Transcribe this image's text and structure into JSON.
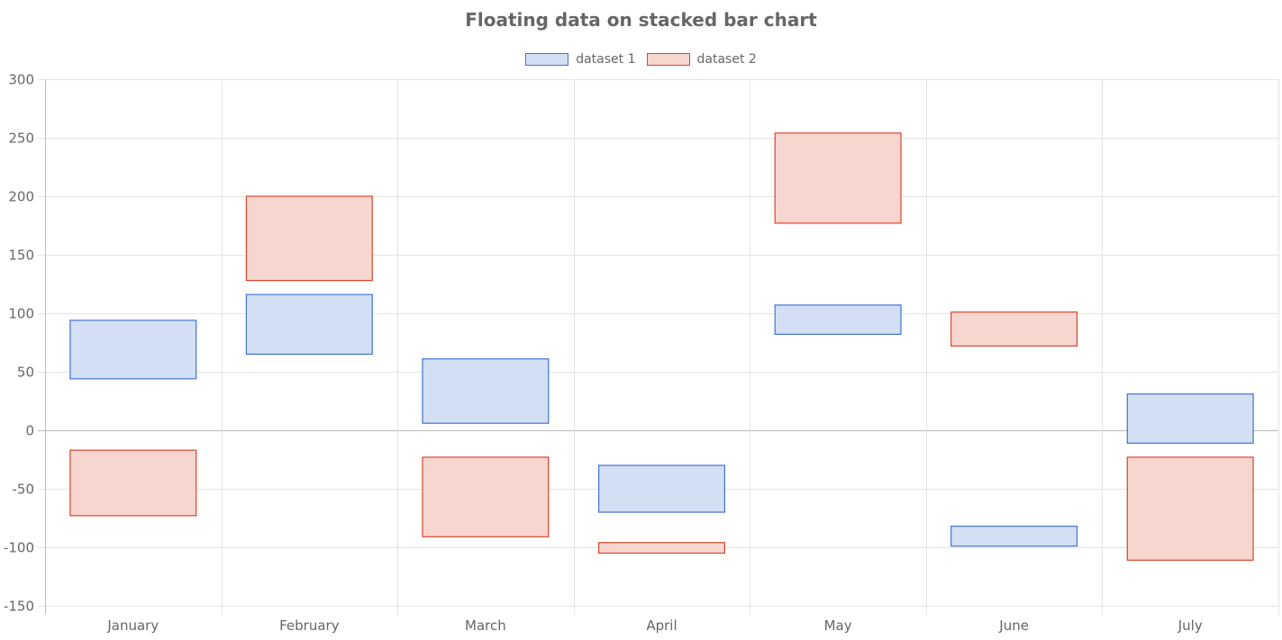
{
  "chart_data": {
    "type": "bar",
    "title": "Floating data on stacked bar chart",
    "categories": [
      "January",
      "February",
      "March",
      "April",
      "May",
      "June",
      "July"
    ],
    "series": [
      {
        "name": "dataset 1",
        "color": "#4472d3",
        "fill": "#d3dff3",
        "ranges": [
          [
            44,
            94
          ],
          [
            65,
            116
          ],
          [
            6,
            61
          ],
          [
            -70,
            -30
          ],
          [
            82,
            107
          ],
          [
            -99,
            -82
          ],
          [
            -11,
            31
          ]
        ]
      },
      {
        "name": "dataset 2",
        "color": "#d9462b",
        "fill": "#f7d6d0",
        "ranges": [
          [
            -73,
            -17
          ],
          [
            128,
            200
          ],
          [
            -91,
            -23
          ],
          [
            -105,
            -96
          ],
          [
            177,
            254
          ],
          [
            72,
            101
          ],
          [
            -111,
            -23
          ]
        ]
      }
    ],
    "ylim": [
      -150,
      300
    ],
    "yticks": [
      300,
      250,
      200,
      150,
      100,
      50,
      0,
      -50,
      -100,
      -150
    ],
    "grid": true,
    "legend_position": "top"
  }
}
